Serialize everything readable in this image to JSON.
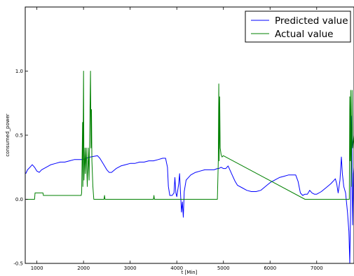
{
  "chart_data": {
    "type": "line",
    "title": "",
    "xlabel": "t [Min]",
    "ylabel": "consumed_power",
    "xlim": [
      750,
      7800
    ],
    "ylim": [
      -0.5,
      1.5
    ],
    "x_ticks": [
      1000,
      2000,
      3000,
      4000,
      5000,
      6000,
      7000
    ],
    "y_ticks": [
      -0.5,
      0.0,
      0.5,
      1.0
    ],
    "grid": false,
    "legend_position": "top-right",
    "series": [
      {
        "name": "Predicted value",
        "color": "#0000ff",
        "points": [
          [
            760,
            0.2
          ],
          [
            800,
            0.23
          ],
          [
            850,
            0.25
          ],
          [
            900,
            0.27
          ],
          [
            950,
            0.25
          ],
          [
            1000,
            0.22
          ],
          [
            1050,
            0.21
          ],
          [
            1100,
            0.23
          ],
          [
            1200,
            0.25
          ],
          [
            1300,
            0.27
          ],
          [
            1400,
            0.28
          ],
          [
            1500,
            0.29
          ],
          [
            1600,
            0.29
          ],
          [
            1700,
            0.3
          ],
          [
            1800,
            0.31
          ],
          [
            1900,
            0.31
          ],
          [
            1980,
            0.31
          ],
          [
            2050,
            0.32
          ],
          [
            2150,
            0.33
          ],
          [
            2300,
            0.34
          ],
          [
            2350,
            0.32
          ],
          [
            2400,
            0.29
          ],
          [
            2450,
            0.26
          ],
          [
            2500,
            0.23
          ],
          [
            2550,
            0.21
          ],
          [
            2600,
            0.21
          ],
          [
            2700,
            0.24
          ],
          [
            2800,
            0.26
          ],
          [
            2900,
            0.27
          ],
          [
            3000,
            0.28
          ],
          [
            3100,
            0.28
          ],
          [
            3200,
            0.29
          ],
          [
            3300,
            0.29
          ],
          [
            3400,
            0.3
          ],
          [
            3500,
            0.3
          ],
          [
            3600,
            0.31
          ],
          [
            3700,
            0.32
          ],
          [
            3760,
            0.32
          ],
          [
            3800,
            0.25
          ],
          [
            3820,
            0.1
          ],
          [
            3850,
            0.03
          ],
          [
            3900,
            0.03
          ],
          [
            3940,
            0.05
          ],
          [
            3960,
            0.17
          ],
          [
            3980,
            0.05
          ],
          [
            4000,
            0.02
          ],
          [
            4040,
            0.12
          ],
          [
            4060,
            0.2
          ],
          [
            4080,
            0.05
          ],
          [
            4100,
            -0.1
          ],
          [
            4120,
            -0.02
          ],
          [
            4140,
            -0.14
          ],
          [
            4160,
            0.06
          ],
          [
            4200,
            0.15
          ],
          [
            4250,
            0.17
          ],
          [
            4300,
            0.19
          ],
          [
            4400,
            0.21
          ],
          [
            4500,
            0.22
          ],
          [
            4600,
            0.23
          ],
          [
            4700,
            0.23
          ],
          [
            4800,
            0.23
          ],
          [
            4870,
            0.24
          ],
          [
            4900,
            0.24
          ],
          [
            4950,
            0.25
          ],
          [
            5000,
            0.24
          ],
          [
            5050,
            0.24
          ],
          [
            5100,
            0.26
          ],
          [
            5150,
            0.22
          ],
          [
            5200,
            0.18
          ],
          [
            5250,
            0.14
          ],
          [
            5300,
            0.11
          ],
          [
            5400,
            0.09
          ],
          [
            5500,
            0.07
          ],
          [
            5600,
            0.06
          ],
          [
            5700,
            0.06
          ],
          [
            5800,
            0.07
          ],
          [
            5900,
            0.1
          ],
          [
            6000,
            0.13
          ],
          [
            6100,
            0.15
          ],
          [
            6200,
            0.17
          ],
          [
            6300,
            0.18
          ],
          [
            6400,
            0.19
          ],
          [
            6500,
            0.19
          ],
          [
            6550,
            0.19
          ],
          [
            6600,
            0.14
          ],
          [
            6650,
            0.05
          ],
          [
            6700,
            0.03
          ],
          [
            6750,
            0.04
          ],
          [
            6800,
            0.04
          ],
          [
            6850,
            0.07
          ],
          [
            6900,
            0.05
          ],
          [
            6950,
            0.04
          ],
          [
            7000,
            0.04
          ],
          [
            7100,
            0.06
          ],
          [
            7200,
            0.09
          ],
          [
            7300,
            0.12
          ],
          [
            7350,
            0.14
          ],
          [
            7400,
            0.16
          ],
          [
            7430,
            0.12
          ],
          [
            7460,
            0.05
          ],
          [
            7500,
            0.15
          ],
          [
            7530,
            0.33
          ],
          [
            7550,
            0.2
          ],
          [
            7580,
            0.1
          ],
          [
            7620,
            0.05
          ],
          [
            7660,
            -0.1
          ],
          [
            7690,
            -0.25
          ],
          [
            7710,
            -0.5
          ],
          [
            7730,
            0.0
          ],
          [
            7750,
            0.65
          ],
          [
            7770,
            -0.2
          ],
          [
            7790,
            0.2
          ],
          [
            7800,
            0.25
          ]
        ]
      },
      {
        "name": "Actual value",
        "color": "#008000",
        "points": [
          [
            760,
            0.0
          ],
          [
            950,
            0.0
          ],
          [
            960,
            0.05
          ],
          [
            1000,
            0.05
          ],
          [
            1130,
            0.05
          ],
          [
            1140,
            0.03
          ],
          [
            1900,
            0.03
          ],
          [
            1950,
            0.03
          ],
          [
            1960,
            0.05
          ],
          [
            1980,
            0.6
          ],
          [
            1985,
            0.1
          ],
          [
            2000,
            1.0
          ],
          [
            2010,
            0.15
          ],
          [
            2030,
            0.4
          ],
          [
            2040,
            0.2
          ],
          [
            2060,
            0.4
          ],
          [
            2080,
            0.1
          ],
          [
            2100,
            0.4
          ],
          [
            2120,
            0.15
          ],
          [
            2150,
            1.0
          ],
          [
            2160,
            0.4
          ],
          [
            2170,
            0.7
          ],
          [
            2180,
            0.3
          ],
          [
            2200,
            0.1
          ],
          [
            2220,
            0.0
          ],
          [
            2440,
            0.0
          ],
          [
            2450,
            0.03
          ],
          [
            2460,
            0.0
          ],
          [
            3500,
            0.0
          ],
          [
            3510,
            0.03
          ],
          [
            3520,
            0.0
          ],
          [
            4870,
            0.0
          ],
          [
            4890,
            0.3
          ],
          [
            4900,
            0.9
          ],
          [
            4910,
            0.3
          ],
          [
            4920,
            0.8
          ],
          [
            4930,
            0.4
          ],
          [
            4950,
            0.35
          ],
          [
            4970,
            0.33
          ],
          [
            5000,
            0.34
          ],
          [
            6750,
            0.0
          ],
          [
            7700,
            0.0
          ],
          [
            7710,
            0.8
          ],
          [
            7720,
            0.3
          ],
          [
            7730,
            0.85
          ],
          [
            7740,
            0.1
          ],
          [
            7760,
            0.85
          ],
          [
            7770,
            0.4
          ],
          [
            7800,
            0.5
          ]
        ]
      }
    ]
  }
}
